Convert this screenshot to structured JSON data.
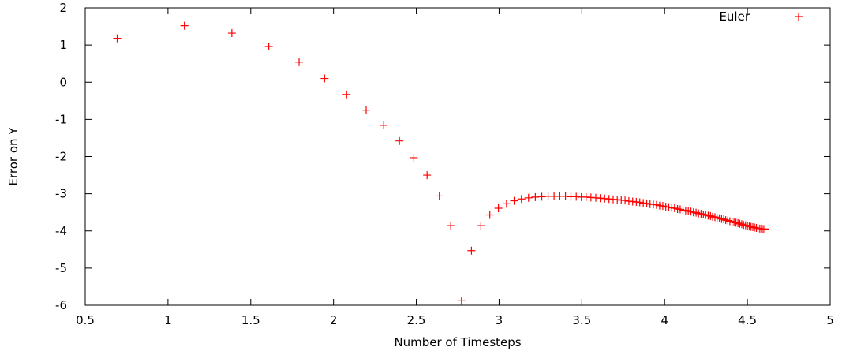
{
  "chart_data": {
    "type": "scatter",
    "title": "",
    "xlabel": "Number of Timesteps",
    "ylabel": "Error on Y",
    "xlim": [
      0.5,
      5
    ],
    "ylim": [
      -6,
      2
    ],
    "xticks": [
      "0.5",
      "1",
      "1.5",
      "2",
      "2.5",
      "3",
      "3.5",
      "4",
      "4.5",
      "5"
    ],
    "yticks": [
      "2",
      "1",
      "0",
      "-1",
      "-2",
      "-3",
      "-4",
      "-5",
      "-6"
    ],
    "grid": false,
    "legend_position": "top-right",
    "marker": "plus",
    "series": [
      {
        "name": "Euler",
        "color": "#ff0000",
        "points": [
          [
            0.693,
            1.18
          ],
          [
            1.099,
            1.52
          ],
          [
            1.386,
            1.32
          ],
          [
            1.609,
            0.96
          ],
          [
            1.792,
            0.54
          ],
          [
            1.946,
            0.1
          ],
          [
            2.079,
            -0.33
          ],
          [
            2.197,
            -0.75
          ],
          [
            2.303,
            -1.16
          ],
          [
            2.398,
            -1.58
          ],
          [
            2.485,
            -2.03
          ],
          [
            2.565,
            -2.5
          ],
          [
            2.639,
            -3.06
          ],
          [
            2.708,
            -3.86
          ],
          [
            2.773,
            -5.88
          ],
          [
            2.833,
            -4.53
          ],
          [
            2.89,
            -3.86
          ],
          [
            2.944,
            -3.57
          ],
          [
            2.996,
            -3.39
          ],
          [
            3.045,
            -3.27
          ],
          [
            3.091,
            -3.19
          ],
          [
            3.135,
            -3.14
          ],
          [
            3.178,
            -3.11
          ],
          [
            3.219,
            -3.09
          ],
          [
            3.258,
            -3.08
          ],
          [
            3.296,
            -3.07
          ],
          [
            3.332,
            -3.07
          ],
          [
            3.367,
            -3.07
          ],
          [
            3.401,
            -3.07
          ],
          [
            3.434,
            -3.08
          ],
          [
            3.466,
            -3.08
          ],
          [
            3.497,
            -3.09
          ],
          [
            3.526,
            -3.09
          ],
          [
            3.555,
            -3.1
          ],
          [
            3.584,
            -3.11
          ],
          [
            3.611,
            -3.12
          ],
          [
            3.638,
            -3.13
          ],
          [
            3.664,
            -3.14
          ],
          [
            3.689,
            -3.15
          ],
          [
            3.714,
            -3.16
          ],
          [
            3.738,
            -3.17
          ],
          [
            3.761,
            -3.18
          ],
          [
            3.784,
            -3.2
          ],
          [
            3.807,
            -3.21
          ],
          [
            3.829,
            -3.22
          ],
          [
            3.85,
            -3.23
          ],
          [
            3.871,
            -3.25
          ],
          [
            3.892,
            -3.26
          ],
          [
            3.912,
            -3.28
          ],
          [
            3.932,
            -3.29
          ],
          [
            3.951,
            -3.3
          ],
          [
            3.97,
            -3.32
          ],
          [
            3.989,
            -3.33
          ],
          [
            4.007,
            -3.35
          ],
          [
            4.025,
            -3.36
          ],
          [
            4.043,
            -3.38
          ],
          [
            4.06,
            -3.39
          ],
          [
            4.078,
            -3.41
          ],
          [
            4.094,
            -3.42
          ],
          [
            4.111,
            -3.44
          ],
          [
            4.127,
            -3.45
          ],
          [
            4.143,
            -3.47
          ],
          [
            4.159,
            -3.48
          ],
          [
            4.174,
            -3.5
          ],
          [
            4.19,
            -3.51
          ],
          [
            4.205,
            -3.53
          ],
          [
            4.22,
            -3.54
          ],
          [
            4.234,
            -3.56
          ],
          [
            4.248,
            -3.57
          ],
          [
            4.263,
            -3.59
          ],
          [
            4.277,
            -3.6
          ],
          [
            4.29,
            -3.62
          ],
          [
            4.304,
            -3.63
          ],
          [
            4.317,
            -3.65
          ],
          [
            4.331,
            -3.66
          ],
          [
            4.344,
            -3.68
          ],
          [
            4.357,
            -3.69
          ],
          [
            4.369,
            -3.71
          ],
          [
            4.382,
            -3.72
          ],
          [
            4.394,
            -3.74
          ],
          [
            4.407,
            -3.75
          ],
          [
            4.419,
            -3.77
          ],
          [
            4.431,
            -3.78
          ],
          [
            4.443,
            -3.79
          ],
          [
            4.454,
            -3.81
          ],
          [
            4.466,
            -3.82
          ],
          [
            4.477,
            -3.84
          ],
          [
            4.489,
            -3.85
          ],
          [
            4.5,
            -3.86
          ],
          [
            4.511,
            -3.88
          ],
          [
            4.522,
            -3.89
          ],
          [
            4.533,
            -3.9
          ],
          [
            4.543,
            -3.91
          ],
          [
            4.554,
            -3.92
          ],
          [
            4.564,
            -3.93
          ],
          [
            4.575,
            -3.94
          ],
          [
            4.585,
            -3.94
          ],
          [
            4.595,
            -3.95
          ],
          [
            4.605,
            -3.95
          ]
        ]
      }
    ]
  }
}
